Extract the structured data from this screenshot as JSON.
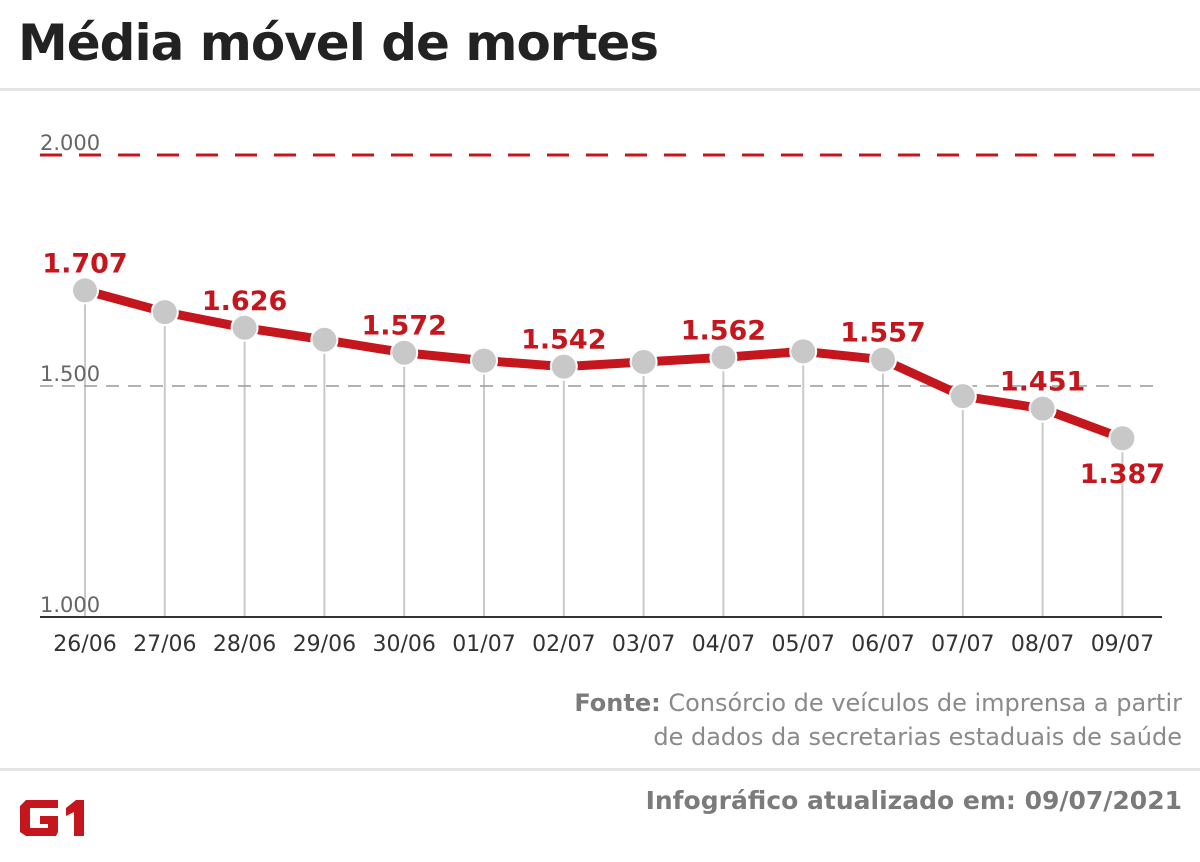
{
  "title": "Média móvel de mortes",
  "source_label": "Fonte:",
  "source_line1": "Consórcio de veículos de imprensa a partir",
  "source_line2": "de dados da secretarias estaduais de saúde",
  "updated_text": "Infográfico atualizado em: 09/07/2021",
  "logo_text": "G1",
  "colors": {
    "line": "#c4161c",
    "marker": "#c8c8c8",
    "axis": "#333333",
    "label": "#c4161c"
  },
  "chart_data": {
    "type": "line",
    "title": "Média móvel de mortes",
    "categories": [
      "26/06",
      "27/06",
      "28/06",
      "29/06",
      "30/06",
      "01/07",
      "02/07",
      "03/07",
      "04/07",
      "05/07",
      "06/07",
      "07/07",
      "08/07",
      "09/07"
    ],
    "values": [
      1707,
      1660,
      1626,
      1600,
      1572,
      1555,
      1542,
      1552,
      1562,
      1575,
      1557,
      1478,
      1451,
      1387
    ],
    "data_labels": [
      {
        "index": 0,
        "text": "1.707"
      },
      {
        "index": 2,
        "text": "1.626"
      },
      {
        "index": 4,
        "text": "1.572"
      },
      {
        "index": 6,
        "text": "1.542"
      },
      {
        "index": 8,
        "text": "1.562"
      },
      {
        "index": 10,
        "text": "1.557"
      },
      {
        "index": 12,
        "text": "1.451"
      },
      {
        "index": 13,
        "text": "1.387",
        "below": true
      }
    ],
    "y_ticks": [
      {
        "value": 1000,
        "label": "1.000"
      },
      {
        "value": 1500,
        "label": "1.500"
      },
      {
        "value": 2000,
        "label": "2.000"
      }
    ],
    "reference_line": {
      "value": 2000,
      "style": "dashed"
    },
    "ylim": [
      1000,
      2000
    ],
    "grid": "vertical drop lines"
  }
}
